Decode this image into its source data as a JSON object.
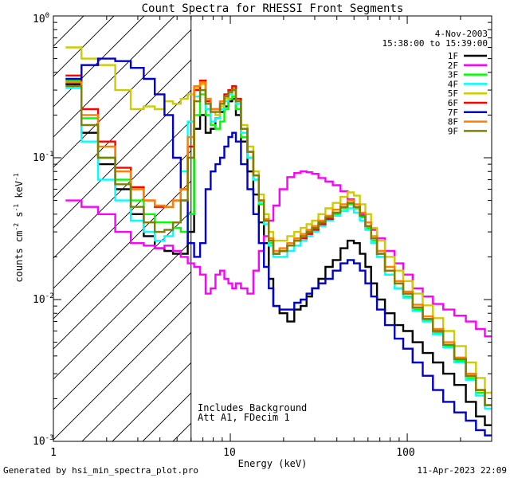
{
  "chart_data": {
    "type": "line",
    "title": "Count Spectra for RHESSI Front Segments",
    "xlabel": "Energy (keV)",
    "ylabel_parts": [
      "counts cm",
      "-2",
      " s",
      "-1",
      " keV",
      "-1"
    ],
    "xscale": "log",
    "yscale": "log",
    "xlim": [
      1,
      300
    ],
    "ylim": [
      0.001,
      1
    ],
    "x_ticks": [
      {
        "value": 1,
        "label": "1"
      },
      {
        "value": 10,
        "label": "10"
      },
      {
        "value": 100,
        "label": "100"
      }
    ],
    "y_ticks": [
      {
        "value": 0.001,
        "base": "10",
        "exp": "-3"
      },
      {
        "value": 0.01,
        "base": "10",
        "exp": "-2"
      },
      {
        "value": 0.1,
        "base": "10",
        "exp": "-1"
      },
      {
        "value": 1,
        "base": "10",
        "exp": "0"
      }
    ],
    "shaded_region": {
      "from_kev": 1,
      "to_kev": 6,
      "style": "diagonal-hatch"
    },
    "legend_position": "top-right",
    "date": "4-Nov-2003",
    "time_range": "15:38:00 to 15:39:00",
    "notes": [
      "Includes Background",
      "Att A1, FDecim 1"
    ],
    "footer_left": "Generated by hsi_min_spectra_plot.pro",
    "footer_right": "11-Apr-2023 22:09",
    "energy_kev": [
      1.3,
      1.6,
      2.0,
      2.5,
      3.0,
      3.5,
      4.0,
      4.5,
      5.0,
      5.5,
      6.0,
      6.5,
      7.0,
      7.5,
      8.0,
      8.5,
      9.0,
      9.5,
      10.0,
      10.5,
      11.0,
      12.0,
      13.0,
      14.0,
      15.0,
      16.0,
      17.0,
      18.0,
      20.0,
      22.0,
      24.0,
      26.0,
      28.0,
      30.0,
      33.0,
      36.0,
      40.0,
      44.0,
      48.0,
      52.0,
      56.0,
      60.0,
      65.0,
      70.0,
      80.0,
      90.0,
      100.0,
      115.0,
      130.0,
      150.0,
      170.0,
      200.0,
      230.0,
      260.0,
      290.0
    ],
    "series": [
      {
        "name": "1F",
        "color": "#000000",
        "values": [
          0.33,
          0.15,
          0.09,
          0.06,
          0.04,
          0.028,
          0.023,
          0.022,
          0.021,
          0.021,
          0.03,
          0.16,
          0.2,
          0.15,
          0.16,
          0.19,
          0.21,
          0.23,
          0.25,
          0.26,
          0.2,
          0.13,
          0.08,
          0.055,
          0.035,
          0.025,
          0.014,
          0.009,
          0.008,
          0.007,
          0.0085,
          0.009,
          0.0105,
          0.012,
          0.014,
          0.017,
          0.019,
          0.023,
          0.026,
          0.025,
          0.021,
          0.017,
          0.013,
          0.01,
          0.008,
          0.0066,
          0.006,
          0.005,
          0.0042,
          0.0036,
          0.003,
          0.0025,
          0.0019,
          0.0015,
          0.0013
        ]
      },
      {
        "name": "2F",
        "color": "#ff00ff",
        "values": [
          0.05,
          0.045,
          0.04,
          0.03,
          0.025,
          0.024,
          0.023,
          0.024,
          0.022,
          0.02,
          0.018,
          0.017,
          0.015,
          0.011,
          0.012,
          0.015,
          0.016,
          0.014,
          0.013,
          0.012,
          0.013,
          0.012,
          0.011,
          0.016,
          0.022,
          0.028,
          0.036,
          0.046,
          0.06,
          0.073,
          0.078,
          0.08,
          0.079,
          0.077,
          0.072,
          0.068,
          0.064,
          0.058,
          0.051,
          0.045,
          0.04,
          0.035,
          0.031,
          0.027,
          0.022,
          0.018,
          0.015,
          0.012,
          0.0105,
          0.0093,
          0.0085,
          0.0077,
          0.007,
          0.0062,
          0.0055
        ]
      },
      {
        "name": "3F",
        "color": "#00ff00",
        "values": [
          0.35,
          0.19,
          0.1,
          0.07,
          0.05,
          0.04,
          0.035,
          0.035,
          0.032,
          0.03,
          0.04,
          0.2,
          0.28,
          0.2,
          0.17,
          0.16,
          0.18,
          0.22,
          0.26,
          0.27,
          0.22,
          0.14,
          0.1,
          0.07,
          0.047,
          0.036,
          0.025,
          0.021,
          0.022,
          0.024,
          0.026,
          0.028,
          0.03,
          0.032,
          0.034,
          0.037,
          0.04,
          0.044,
          0.047,
          0.044,
          0.038,
          0.032,
          0.026,
          0.02,
          0.015,
          0.012,
          0.0105,
          0.0085,
          0.0071,
          0.0058,
          0.0047,
          0.0037,
          0.0028,
          0.0022,
          0.0018
        ]
      },
      {
        "name": "4F",
        "color": "#00ffff",
        "values": [
          0.31,
          0.13,
          0.07,
          0.05,
          0.036,
          0.03,
          0.026,
          0.028,
          0.035,
          0.08,
          0.18,
          0.27,
          0.3,
          0.22,
          0.18,
          0.19,
          0.22,
          0.25,
          0.28,
          0.3,
          0.24,
          0.15,
          0.1,
          0.07,
          0.048,
          0.034,
          0.024,
          0.02,
          0.02,
          0.022,
          0.024,
          0.026,
          0.028,
          0.03,
          0.033,
          0.036,
          0.039,
          0.042,
          0.044,
          0.041,
          0.036,
          0.031,
          0.025,
          0.02,
          0.015,
          0.012,
          0.0103,
          0.0083,
          0.007,
          0.0057,
          0.0046,
          0.0036,
          0.0027,
          0.0021,
          0.0017
        ]
      },
      {
        "name": "5F",
        "color": "#cccc00",
        "values": [
          0.6,
          0.5,
          0.45,
          0.3,
          0.22,
          0.23,
          0.22,
          0.25,
          0.24,
          0.26,
          0.28,
          0.31,
          0.33,
          0.26,
          0.21,
          0.2,
          0.23,
          0.26,
          0.3,
          0.31,
          0.26,
          0.17,
          0.12,
          0.08,
          0.055,
          0.04,
          0.03,
          0.026,
          0.026,
          0.028,
          0.03,
          0.032,
          0.034,
          0.036,
          0.04,
          0.044,
          0.048,
          0.053,
          0.057,
          0.054,
          0.047,
          0.04,
          0.032,
          0.026,
          0.02,
          0.016,
          0.0135,
          0.011,
          0.0091,
          0.0074,
          0.006,
          0.0047,
          0.0036,
          0.0028,
          0.0022
        ]
      },
      {
        "name": "6F",
        "color": "#ff0000",
        "values": [
          0.38,
          0.22,
          0.13,
          0.085,
          0.062,
          0.05,
          0.045,
          0.045,
          0.05,
          0.06,
          0.12,
          0.3,
          0.35,
          0.25,
          0.22,
          0.22,
          0.25,
          0.28,
          0.3,
          0.32,
          0.26,
          0.16,
          0.11,
          0.075,
          0.05,
          0.036,
          0.026,
          0.021,
          0.022,
          0.024,
          0.026,
          0.027,
          0.029,
          0.031,
          0.034,
          0.037,
          0.041,
          0.045,
          0.048,
          0.045,
          0.039,
          0.033,
          0.027,
          0.021,
          0.016,
          0.013,
          0.011,
          0.0088,
          0.0073,
          0.006,
          0.0048,
          0.0038,
          0.0029,
          0.0023,
          0.0018
        ]
      },
      {
        "name": "7F",
        "color": "#0000cc",
        "values": [
          0.36,
          0.45,
          0.5,
          0.48,
          0.43,
          0.36,
          0.28,
          0.2,
          0.1,
          0.05,
          0.025,
          0.02,
          0.025,
          0.06,
          0.08,
          0.09,
          0.1,
          0.12,
          0.14,
          0.15,
          0.13,
          0.09,
          0.06,
          0.04,
          0.025,
          0.017,
          0.012,
          0.009,
          0.0085,
          0.0085,
          0.0095,
          0.01,
          0.011,
          0.012,
          0.013,
          0.014,
          0.016,
          0.018,
          0.019,
          0.018,
          0.016,
          0.013,
          0.0105,
          0.0085,
          0.0066,
          0.0053,
          0.0045,
          0.0036,
          0.0029,
          0.0023,
          0.0019,
          0.0016,
          0.0014,
          0.0012,
          0.0011
        ]
      },
      {
        "name": "8F",
        "color": "#ff8000",
        "values": [
          0.34,
          0.2,
          0.12,
          0.08,
          0.06,
          0.05,
          0.046,
          0.045,
          0.05,
          0.06,
          0.14,
          0.32,
          0.34,
          0.26,
          0.22,
          0.22,
          0.25,
          0.27,
          0.29,
          0.3,
          0.25,
          0.16,
          0.11,
          0.075,
          0.05,
          0.037,
          0.027,
          0.022,
          0.023,
          0.025,
          0.027,
          0.029,
          0.031,
          0.033,
          0.036,
          0.039,
          0.043,
          0.047,
          0.05,
          0.047,
          0.041,
          0.035,
          0.028,
          0.022,
          0.017,
          0.0135,
          0.0114,
          0.0092,
          0.0076,
          0.0062,
          0.005,
          0.0039,
          0.003,
          0.0023,
          0.0018
        ]
      },
      {
        "name": "9F",
        "color": "#808000",
        "values": [
          0.32,
          0.17,
          0.1,
          0.065,
          0.045,
          0.035,
          0.03,
          0.031,
          0.035,
          0.05,
          0.1,
          0.25,
          0.3,
          0.24,
          0.21,
          0.21,
          0.24,
          0.27,
          0.29,
          0.3,
          0.25,
          0.16,
          0.11,
          0.075,
          0.05,
          0.036,
          0.026,
          0.021,
          0.022,
          0.024,
          0.026,
          0.028,
          0.03,
          0.032,
          0.035,
          0.038,
          0.041,
          0.045,
          0.048,
          0.045,
          0.039,
          0.033,
          0.027,
          0.021,
          0.016,
          0.013,
          0.011,
          0.0088,
          0.0073,
          0.006,
          0.0048,
          0.0038,
          0.0029,
          0.0023,
          0.0018
        ]
      }
    ]
  }
}
